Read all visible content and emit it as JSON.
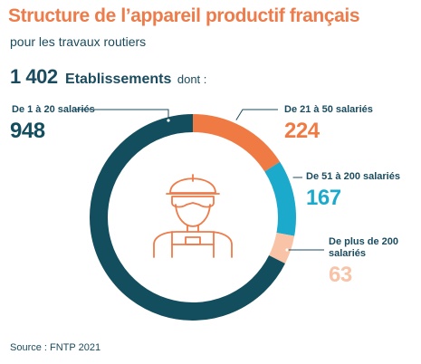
{
  "title": "Structure de l’appareil productif français",
  "subtitle": "pour les travaux routiers",
  "total": {
    "value": "1 402",
    "unit": "Etablissements",
    "suffix": "dont :"
  },
  "source": "Source : FNTP 2021",
  "chart_data": {
    "type": "pie",
    "total": 1402,
    "segments": [
      {
        "label": "De 1 à 20 salariés",
        "value": 948,
        "color": "#134E5E"
      },
      {
        "label": "De 21 à 50 salariés",
        "value": 224,
        "color": "#F07A44"
      },
      {
        "label": "De 51 à 200 salariés",
        "value": 167,
        "color": "#1BAACB"
      },
      {
        "label": "De plus de 200 salariés",
        "value": 63,
        "color": "#F8C3A6"
      }
    ]
  }
}
